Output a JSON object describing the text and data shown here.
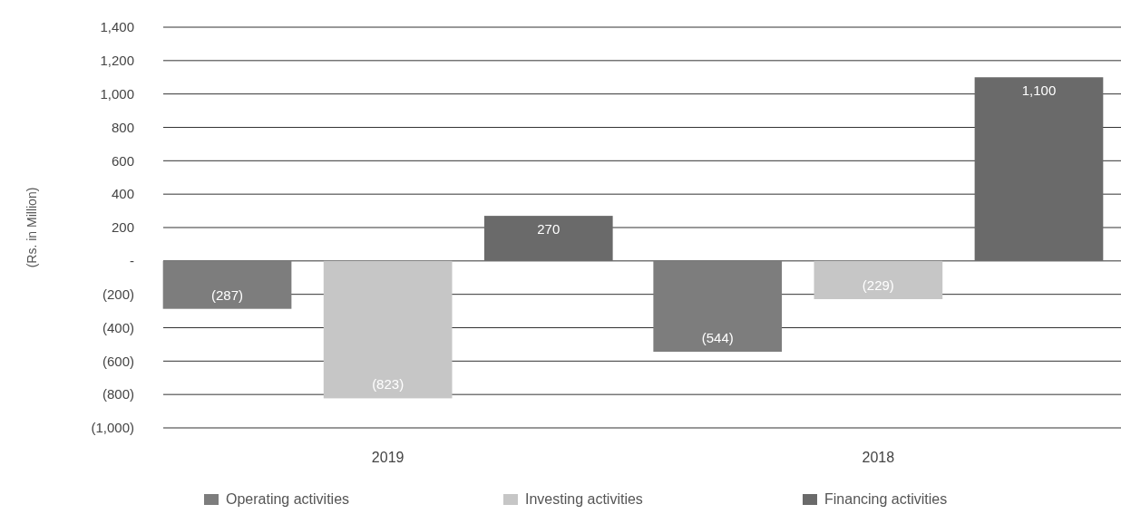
{
  "chart_data": {
    "type": "bar",
    "ylabel": "(Rs. in Million)",
    "categories": [
      "2019",
      "2018"
    ],
    "series": [
      {
        "name": "Operating activities",
        "color": "#7d7d7d",
        "values": [
          -287,
          -544
        ],
        "value_labels": [
          "(287)",
          "(544)"
        ]
      },
      {
        "name": "Investing activities",
        "color": "#c6c6c6",
        "values": [
          -823,
          -229
        ],
        "value_labels": [
          "(823)",
          "(229)"
        ]
      },
      {
        "name": "Financing activities",
        "color": "#6a6a6a",
        "values": [
          270,
          1100
        ],
        "value_labels": [
          "270",
          "1,100"
        ]
      }
    ],
    "ylim": [
      -1000,
      1400
    ],
    "yticks": [
      {
        "value": -1000,
        "label": "(1,000)"
      },
      {
        "value": -800,
        "label": "(800)"
      },
      {
        "value": -600,
        "label": "(600)"
      },
      {
        "value": -400,
        "label": "(400)"
      },
      {
        "value": -200,
        "label": "(200)"
      },
      {
        "value": 0,
        "label": "-"
      },
      200,
      400,
      600,
      800,
      {
        "value": 1000,
        "label": "1,000"
      },
      {
        "value": 1200,
        "label": "1,200"
      },
      {
        "value": 1400,
        "label": "1,400"
      }
    ],
    "grid": "y",
    "legend": "bottom"
  }
}
